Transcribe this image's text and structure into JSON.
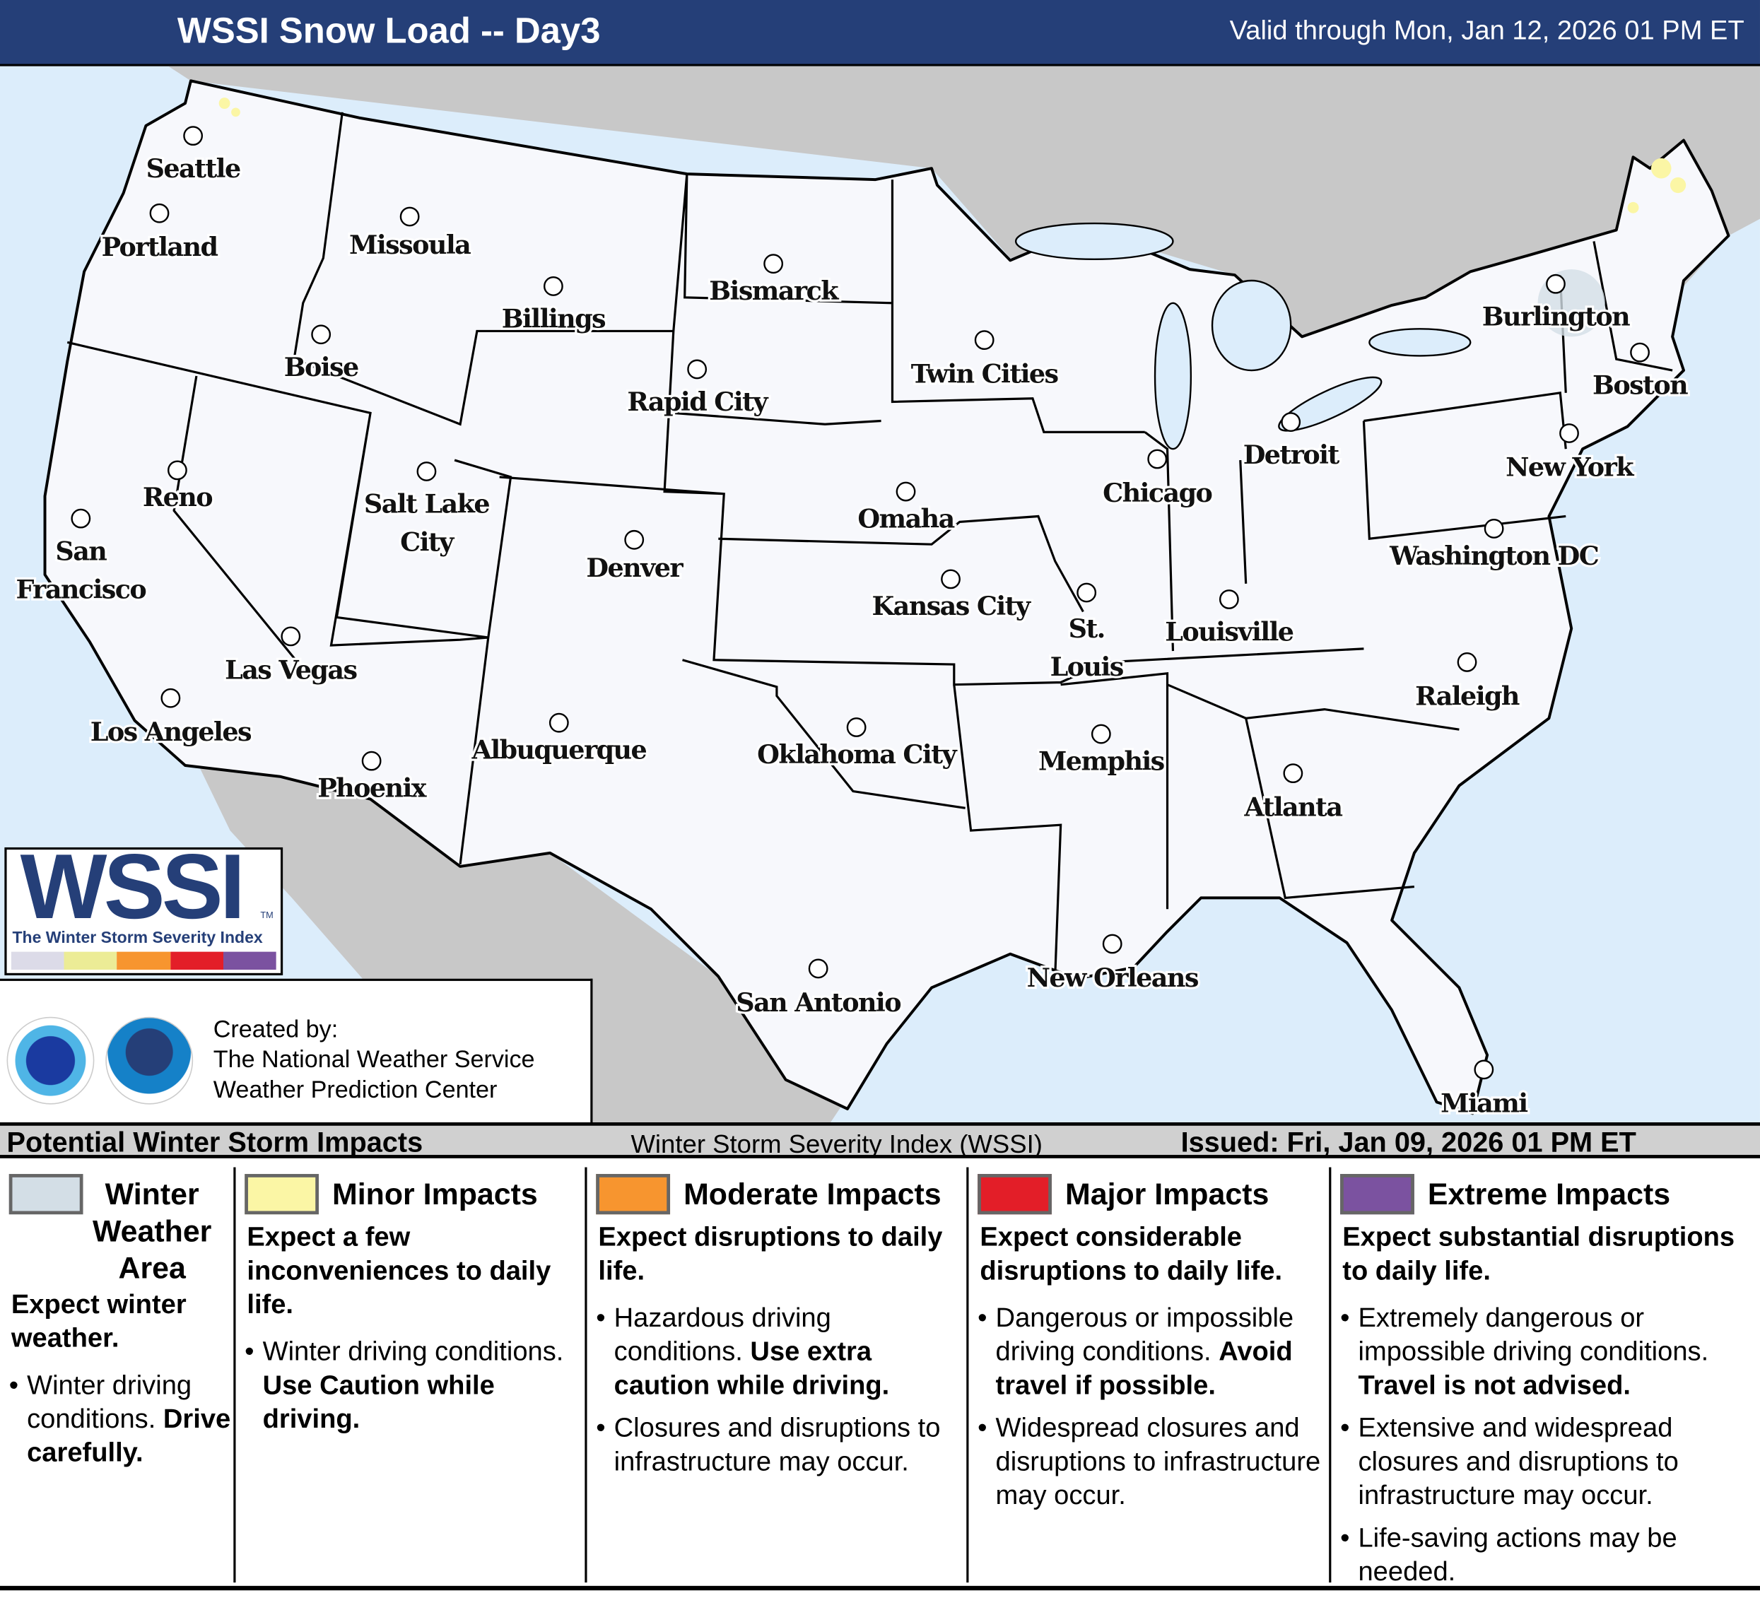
{
  "header": {
    "title": "WSSI Snow Load -- Day3",
    "valid": "Valid through Mon, Jan 12, 2026 01 PM ET"
  },
  "colors": {
    "header_bg": "#253f78",
    "ocean": "#dcedfb",
    "foreign_land": "#c8c8c8",
    "us_land": "#f7f8fc",
    "winter_weather_area": "#d3dee6",
    "minor": "#fbf6a5",
    "moderate": "#f7952f",
    "major": "#e31e28",
    "extreme": "#7b52a0"
  },
  "cities": [
    {
      "name": [
        "Seattle"
      ]
    },
    {
      "name": [
        "Portland"
      ]
    },
    {
      "name": [
        "Missoula"
      ]
    },
    {
      "name": [
        "Billings"
      ]
    },
    {
      "name": [
        "Bismarck"
      ]
    },
    {
      "name": [
        "Boise"
      ]
    },
    {
      "name": [
        "Rapid City"
      ]
    },
    {
      "name": [
        "Twin Cities"
      ]
    },
    {
      "name": [
        "Burlington"
      ]
    },
    {
      "name": [
        "Boston"
      ]
    },
    {
      "name": [
        "Detroit"
      ]
    },
    {
      "name": [
        "Chicago"
      ]
    },
    {
      "name": [
        "New York"
      ]
    },
    {
      "name": [
        "Reno"
      ]
    },
    {
      "name": [
        "Salt Lake",
        "City"
      ]
    },
    {
      "name": [
        "Omaha"
      ]
    },
    {
      "name": [
        "San",
        "Francisco"
      ]
    },
    {
      "name": [
        "Denver"
      ]
    },
    {
      "name": [
        "Washington DC"
      ]
    },
    {
      "name": [
        "Kansas City"
      ]
    },
    {
      "name": [
        "St.",
        "Louis"
      ]
    },
    {
      "name": [
        "Louisville"
      ]
    },
    {
      "name": [
        "Las Vegas"
      ]
    },
    {
      "name": [
        "Raleigh"
      ]
    },
    {
      "name": [
        "Los Angeles"
      ]
    },
    {
      "name": [
        "Oklahoma City"
      ]
    },
    {
      "name": [
        "Albuquerque"
      ]
    },
    {
      "name": [
        "Memphis"
      ]
    },
    {
      "name": [
        "Phoenix"
      ]
    },
    {
      "name": [
        "Atlanta"
      ]
    },
    {
      "name": [
        "New Orleans"
      ]
    },
    {
      "name": [
        "San Antonio"
      ]
    },
    {
      "name": [
        "Miami"
      ]
    }
  ],
  "logo": {
    "wordmark": "WSSI",
    "tm": "TM",
    "subtitle": "The Winter Storm Severity Index"
  },
  "credit": {
    "line1": "Created by:",
    "line2": "The National Weather Service",
    "line3": "Weather Prediction Center",
    "nws_seal": "NATIONAL WEATHER SERVICE",
    "noaa_seal": "NOAA"
  },
  "legend_bar": {
    "left": "Potential Winter Storm Impacts",
    "center": "Winter Storm Severity Index (WSSI)",
    "right": "Issued: Fri, Jan 09, 2026 01 PM ET"
  },
  "legend": [
    {
      "title": "Winter Weather Area",
      "headline": "Expect winter weather.",
      "bullets": [
        {
          "text": "Winter driving conditions. ",
          "bold": "Drive carefully."
        }
      ]
    },
    {
      "title": "Minor Impacts",
      "headline": "Expect a few inconveniences to daily life.",
      "bullets": [
        {
          "text": "Winter driving conditions. ",
          "bold": "Use Caution while driving."
        }
      ]
    },
    {
      "title": "Moderate Impacts",
      "headline": "Expect disruptions to daily life.",
      "bullets": [
        {
          "text": "Hazardous driving conditions. ",
          "bold": "Use extra caution while driving."
        },
        {
          "text": "Closures and disruptions to infrastructure may occur.",
          "bold": ""
        }
      ]
    },
    {
      "title": "Major Impacts",
      "headline": "Expect considerable disruptions to daily life.",
      "bullets": [
        {
          "text": "Dangerous or impossible driving conditions. ",
          "bold": "Avoid travel if possible."
        },
        {
          "text": "Widespread closures and disruptions to infrastructure may occur.",
          "bold": ""
        }
      ]
    },
    {
      "title": "Extreme Impacts",
      "headline": "Expect substantial disruptions to daily life.",
      "bullets": [
        {
          "text": "Extremely dangerous or impossible driving conditions. ",
          "bold": "Travel is not advised."
        },
        {
          "text": "Extensive and widespread closures and disruptions to infrastructure may occur.",
          "bold": ""
        },
        {
          "text": "Life-saving actions may be needed.",
          "bold": ""
        }
      ]
    }
  ]
}
